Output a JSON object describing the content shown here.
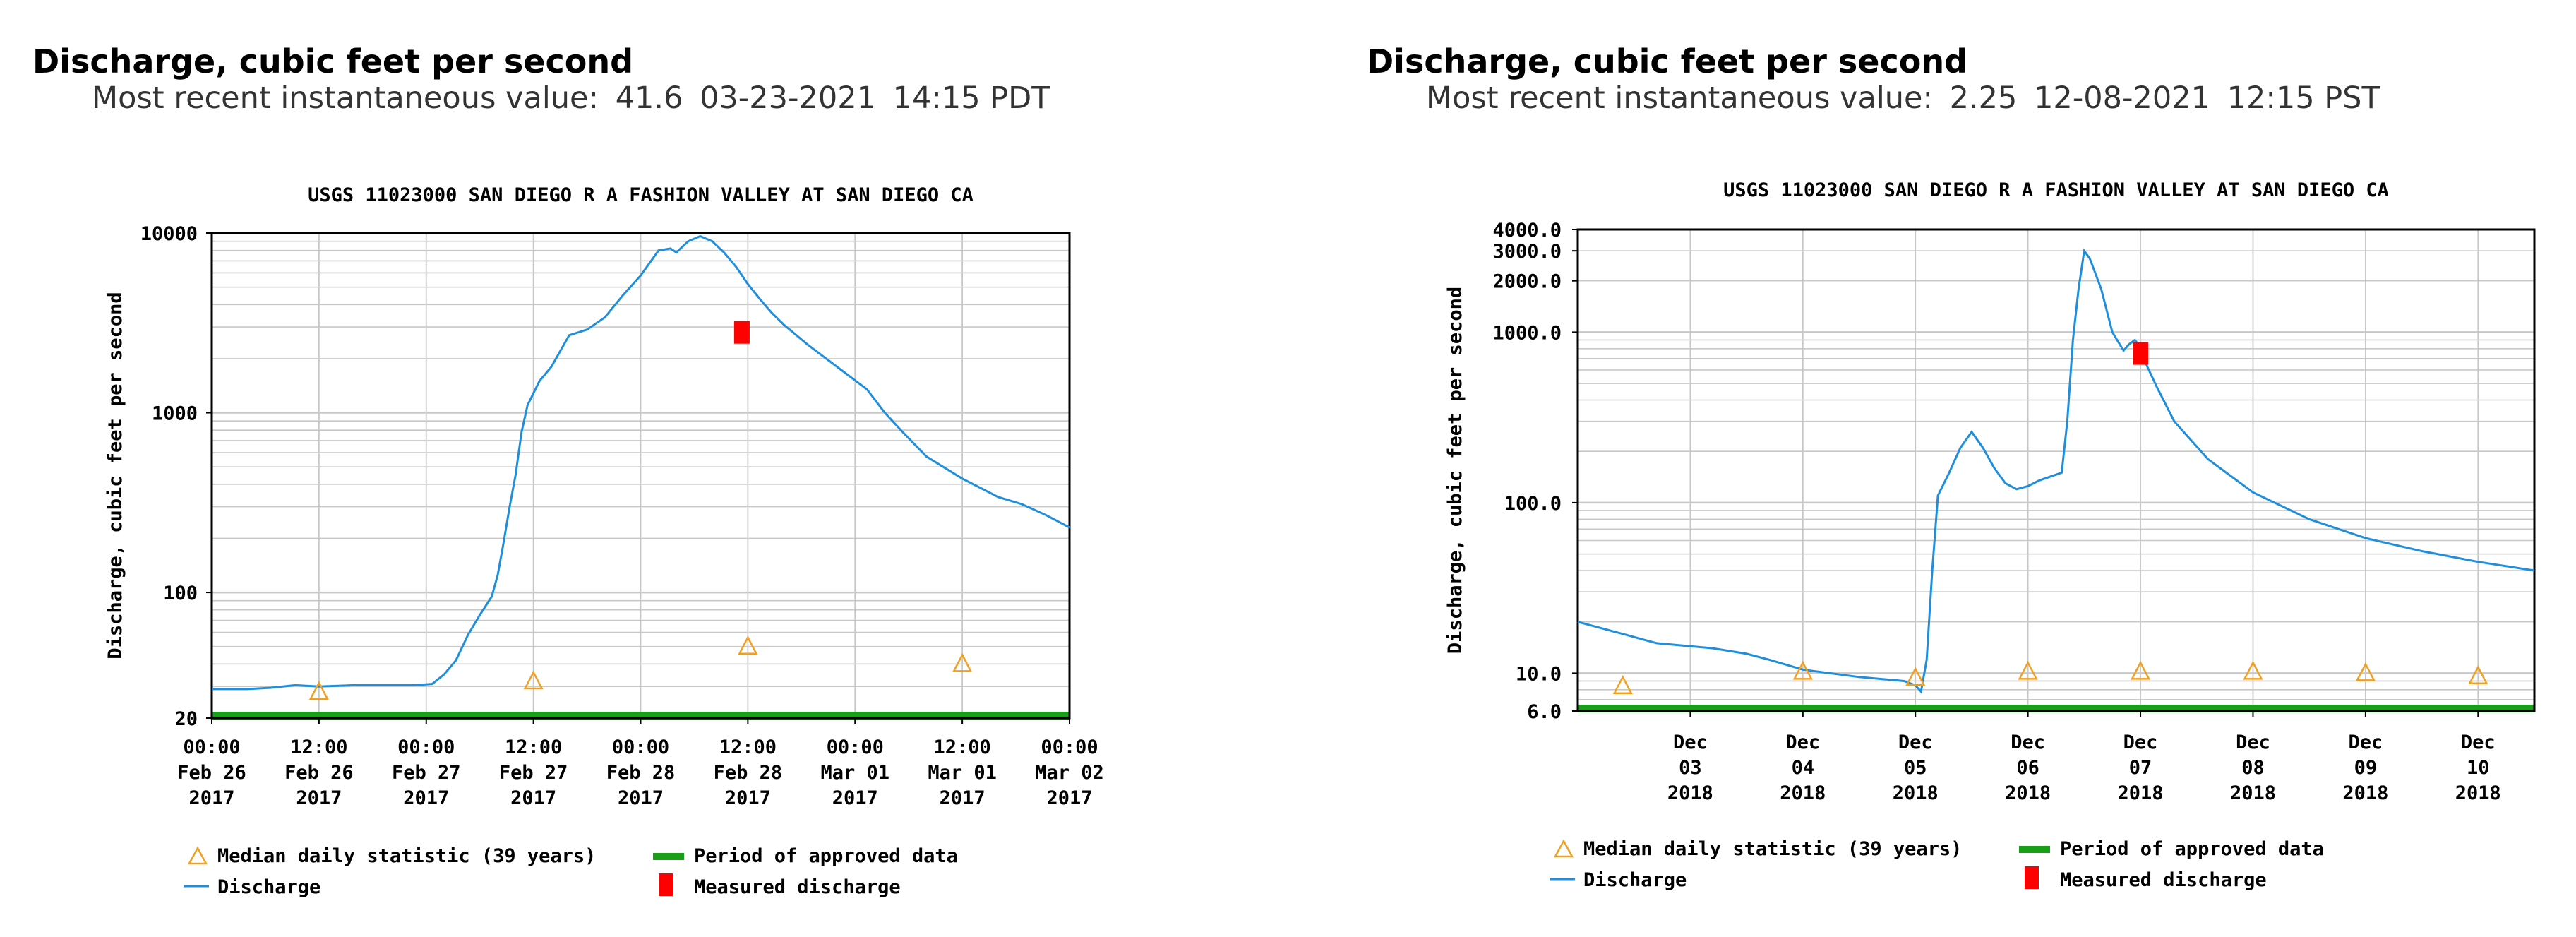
{
  "panels": [
    {
      "header": {
        "title": "Discharge, cubic feet per second",
        "recent_label": "Most recent instantaneous value:",
        "recent_value": "41.6",
        "recent_date": "03-23-2021",
        "recent_time": "14:15 PDT"
      }
    },
    {
      "header": {
        "title": "Discharge, cubic feet per second",
        "recent_label": "Most recent instantaneous value:",
        "recent_value": "2.25",
        "recent_date": "12-08-2021",
        "recent_time": "12:15 PST"
      }
    }
  ],
  "colors": {
    "discharge": "#1f8fdc",
    "median": "#f0a020",
    "approved": "#1a9e1a",
    "measured": "#ff0000",
    "grid": "#c8c8c8"
  },
  "chart_data": [
    {
      "type": "line",
      "title": "USGS 11023000 SAN DIEGO R A FASHION VALLEY AT SAN DIEGO CA",
      "ylabel": "Discharge, cubic feet per second",
      "yscale": "log",
      "ylim": [
        20,
        10000
      ],
      "xlim": [
        0,
        144
      ],
      "yticks": [
        {
          "v": 20,
          "label": "20"
        },
        {
          "v": 100,
          "label": "100"
        },
        {
          "v": 1000,
          "label": "1000"
        },
        {
          "v": 10000,
          "label": "10000"
        }
      ],
      "xticks": [
        {
          "x": 0,
          "lines": [
            "00:00",
            "Feb 26",
            "2017"
          ]
        },
        {
          "x": 18,
          "lines": [
            "12:00",
            "Feb 26",
            "2017"
          ]
        },
        {
          "x": 36,
          "lines": [
            "00:00",
            "Feb 27",
            "2017"
          ]
        },
        {
          "x": 54,
          "lines": [
            "12:00",
            "Feb 27",
            "2017"
          ]
        },
        {
          "x": 72,
          "lines": [
            "00:00",
            "Feb 28",
            "2017"
          ]
        },
        {
          "x": 90,
          "lines": [
            "12:00",
            "Feb 28",
            "2017"
          ]
        },
        {
          "x": 108,
          "lines": [
            "00:00",
            "Mar 01",
            "2017"
          ]
        },
        {
          "x": 126,
          "lines": [
            "12:00",
            "Mar 01",
            "2017"
          ]
        },
        {
          "x": 144,
          "lines": [
            "00:00",
            "Mar 02",
            "2017"
          ]
        }
      ],
      "series": [
        {
          "name": "Discharge",
          "points": [
            [
              0,
              29
            ],
            [
              6,
              29
            ],
            [
              10,
              29.5
            ],
            [
              14,
              30.5
            ],
            [
              18,
              30
            ],
            [
              24,
              30.5
            ],
            [
              30,
              30.5
            ],
            [
              34,
              30.5
            ],
            [
              37,
              31
            ],
            [
              39,
              35
            ],
            [
              41,
              42
            ],
            [
              43,
              58
            ],
            [
              45,
              75
            ],
            [
              47,
              95
            ],
            [
              48,
              125
            ],
            [
              49,
              190
            ],
            [
              50,
              300
            ],
            [
              51,
              450
            ],
            [
              52,
              780
            ],
            [
              53,
              1100
            ],
            [
              55,
              1500
            ],
            [
              57,
              1800
            ],
            [
              60,
              2700
            ],
            [
              63,
              2900
            ],
            [
              66,
              3400
            ],
            [
              69,
              4500
            ],
            [
              72,
              5800
            ],
            [
              75,
              8000
            ],
            [
              77,
              8200
            ],
            [
              78,
              7800
            ],
            [
              80,
              9000
            ],
            [
              82,
              9600
            ],
            [
              84,
              9000
            ],
            [
              86,
              7800
            ],
            [
              88,
              6500
            ],
            [
              90,
              5200
            ],
            [
              92,
              4300
            ],
            [
              94,
              3600
            ],
            [
              96,
              3100
            ],
            [
              100,
              2400
            ],
            [
              105,
              1800
            ],
            [
              110,
              1350
            ],
            [
              113,
              1000
            ],
            [
              116,
              780
            ],
            [
              120,
              570
            ],
            [
              126,
              430
            ],
            [
              132,
              340
            ],
            [
              136,
              310
            ],
            [
              140,
              270
            ],
            [
              144,
              230
            ]
          ]
        },
        {
          "name": "Median daily statistic (39 years)",
          "points": [
            [
              18,
              28
            ],
            [
              54,
              32
            ],
            [
              90,
              50
            ],
            [
              126,
              40
            ]
          ]
        },
        {
          "name": "Measured discharge",
          "points": [
            [
              89,
              2800
            ]
          ]
        }
      ],
      "approved_period": [
        0,
        144
      ],
      "legend": [
        "Median daily statistic (39 years)",
        "Period of approved data",
        "Discharge",
        "Measured discharge"
      ],
      "legend_position": "bottom"
    },
    {
      "type": "line",
      "title": "USGS 11023000 SAN DIEGO R A FASHION VALLEY AT SAN DIEGO CA",
      "ylabel": "Discharge, cubic feet per second",
      "yscale": "log",
      "ylim": [
        6.0,
        4000.0
      ],
      "xlim": [
        -1,
        7.5
      ],
      "yticks": [
        {
          "v": 6,
          "label": "6.0"
        },
        {
          "v": 10,
          "label": "10.0"
        },
        {
          "v": 100,
          "label": "100.0"
        },
        {
          "v": 1000,
          "label": "1000.0"
        },
        {
          "v": 2000,
          "label": "2000.0"
        },
        {
          "v": 3000,
          "label": "3000.0"
        },
        {
          "v": 4000,
          "label": "4000.0"
        }
      ],
      "xticks": [
        {
          "x": 0,
          "lines": [
            "Dec",
            "03",
            "2018"
          ]
        },
        {
          "x": 1,
          "lines": [
            "Dec",
            "04",
            "2018"
          ]
        },
        {
          "x": 2,
          "lines": [
            "Dec",
            "05",
            "2018"
          ]
        },
        {
          "x": 3,
          "lines": [
            "Dec",
            "06",
            "2018"
          ]
        },
        {
          "x": 4,
          "lines": [
            "Dec",
            "07",
            "2018"
          ]
        },
        {
          "x": 5,
          "lines": [
            "Dec",
            "08",
            "2018"
          ]
        },
        {
          "x": 6,
          "lines": [
            "Dec",
            "09",
            "2018"
          ]
        },
        {
          "x": 7,
          "lines": [
            "Dec",
            "10",
            "2018"
          ]
        }
      ],
      "series": [
        {
          "name": "Discharge",
          "points": [
            [
              -1,
              20
            ],
            [
              -0.6,
              17
            ],
            [
              -0.3,
              15
            ],
            [
              0.2,
              14
            ],
            [
              0.5,
              13
            ],
            [
              0.7,
              12
            ],
            [
              1.0,
              10.5
            ],
            [
              1.5,
              9.5
            ],
            [
              1.9,
              9
            ],
            [
              2.0,
              8.5
            ],
            [
              2.05,
              7.8
            ],
            [
              2.1,
              12
            ],
            [
              2.15,
              40
            ],
            [
              2.2,
              110
            ],
            [
              2.3,
              150
            ],
            [
              2.4,
              210
            ],
            [
              2.5,
              260
            ],
            [
              2.6,
              210
            ],
            [
              2.7,
              160
            ],
            [
              2.8,
              130
            ],
            [
              2.9,
              120
            ],
            [
              3.0,
              125
            ],
            [
              3.1,
              135
            ],
            [
              3.3,
              150
            ],
            [
              3.35,
              300
            ],
            [
              3.4,
              900
            ],
            [
              3.45,
              1800
            ],
            [
              3.5,
              3000
            ],
            [
              3.55,
              2700
            ],
            [
              3.65,
              1800
            ],
            [
              3.75,
              1000
            ],
            [
              3.85,
              780
            ],
            [
              3.9,
              850
            ],
            [
              3.95,
              900
            ],
            [
              4.0,
              820
            ],
            [
              4.05,
              650
            ],
            [
              4.15,
              470
            ],
            [
              4.3,
              300
            ],
            [
              4.6,
              180
            ],
            [
              5.0,
              115
            ],
            [
              5.5,
              80
            ],
            [
              6.0,
              62
            ],
            [
              6.5,
              52
            ],
            [
              7.0,
              45
            ],
            [
              7.5,
              40
            ]
          ]
        },
        {
          "name": "Median daily statistic (39 years)",
          "points": [
            [
              -0.6,
              8.4
            ],
            [
              1.0,
              10.2
            ],
            [
              2.0,
              9.4
            ],
            [
              3.0,
              10.2
            ],
            [
              4.0,
              10.2
            ],
            [
              5.0,
              10.2
            ],
            [
              6.0,
              10.0
            ],
            [
              7.0,
              9.6
            ]
          ]
        },
        {
          "name": "Measured discharge",
          "points": [
            [
              4.0,
              750
            ]
          ]
        }
      ],
      "approved_period": [
        -1,
        7.5
      ],
      "legend": [
        "Median daily statistic (39 years)",
        "Period of approved data",
        "Discharge",
        "Measured discharge"
      ],
      "legend_position": "bottom"
    }
  ]
}
